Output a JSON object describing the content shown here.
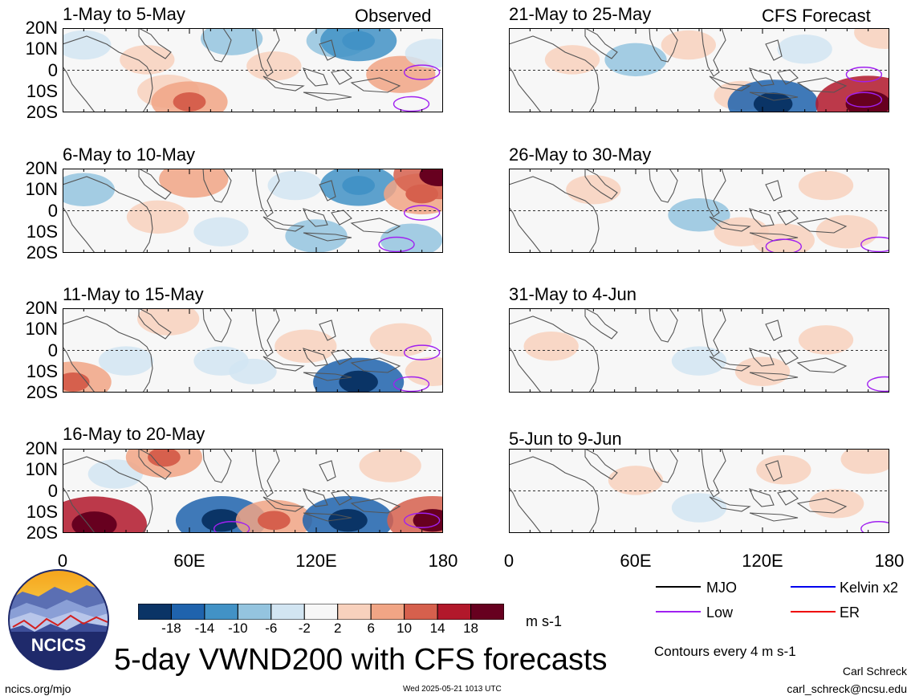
{
  "header": {
    "observed_label": "Observed",
    "forecast_label": "CFS Forecast"
  },
  "panels_left": [
    "1-May to 5-May",
    "6-May to 10-May",
    "11-May to 15-May",
    "16-May to 20-May"
  ],
  "panels_right": [
    "21-May to 25-May",
    "26-May to 30-May",
    "31-May to 4-Jun",
    "5-Jun to 9-Jun"
  ],
  "lat_ticks": [
    "20N",
    "10N",
    "0",
    "10S",
    "20S"
  ],
  "lon_ticks": [
    "0",
    "60E",
    "120E",
    "180"
  ],
  "colorbar": {
    "unit": "m s-1",
    "ticks": [
      "-18",
      "-14",
      "-10",
      "-6",
      "-2",
      "2",
      "6",
      "10",
      "14",
      "18"
    ],
    "colors": [
      "#0a3466",
      "#1f63ad",
      "#4292c6",
      "#94c4df",
      "#d2e5f2",
      "#f7f7f7",
      "#f8d1bd",
      "#f1a585",
      "#d6604d",
      "#b2182b",
      "#67001f"
    ]
  },
  "legend": {
    "items": [
      {
        "label": "MJO",
        "color": "#000000"
      },
      {
        "label": "Kelvin x2",
        "color": "#0000ee"
      },
      {
        "label": "Low",
        "color": "#a020f0"
      },
      {
        "label": "ER",
        "color": "#ee0000"
      }
    ],
    "note": "Contours every 4 m s-1"
  },
  "footer": {
    "logo_text": "NCICS",
    "title": "5-day VWND200 with CFS forecasts",
    "url": "ncics.org/mjo",
    "timestamp": "Wed 2025-05-21 1013 UTC",
    "author": "Carl Schreck",
    "email": "carl_schreck@ncsu.edu"
  },
  "chart_data": {
    "type": "heatmap",
    "variable": "VWND200",
    "lon_range": [
      0,
      180
    ],
    "lat_range": [
      -20,
      20
    ],
    "contour_interval": 4,
    "panels": [
      {
        "title": "1-May to 5-May",
        "kind": "observed",
        "anomalies": [
          {
            "lon": 10,
            "lat": 12,
            "value": -4
          },
          {
            "lon": 40,
            "lat": 5,
            "value": 4
          },
          {
            "lon": 50,
            "lat": -10,
            "value": 6
          },
          {
            "lon": 60,
            "lat": -15,
            "value": 10
          },
          {
            "lon": 80,
            "lat": 15,
            "value": -6
          },
          {
            "lon": 100,
            "lat": 2,
            "value": 4
          },
          {
            "lon": 130,
            "lat": 14,
            "value": -6
          },
          {
            "lon": 140,
            "lat": 14,
            "value": -10
          },
          {
            "lon": 160,
            "lat": -2,
            "value": 8
          },
          {
            "lon": 175,
            "lat": 8,
            "value": -4
          }
        ],
        "low_contours": [
          {
            "lon": 170,
            "lat": -1
          },
          {
            "lon": 165,
            "lat": -16
          }
        ]
      },
      {
        "title": "6-May to 10-May",
        "kind": "observed",
        "anomalies": [
          {
            "lon": 10,
            "lat": 10,
            "value": -6
          },
          {
            "lon": 45,
            "lat": -3,
            "value": 6
          },
          {
            "lon": 62,
            "lat": 15,
            "value": 8
          },
          {
            "lon": 75,
            "lat": -10,
            "value": -4
          },
          {
            "lon": 110,
            "lat": 12,
            "value": -4
          },
          {
            "lon": 120,
            "lat": -12,
            "value": -6
          },
          {
            "lon": 140,
            "lat": 12,
            "value": -10
          },
          {
            "lon": 170,
            "lat": 8,
            "value": 10
          },
          {
            "lon": 178,
            "lat": 17,
            "value": 14
          },
          {
            "lon": 165,
            "lat": -14,
            "value": -6
          }
        ],
        "low_contours": [
          {
            "lon": 170,
            "lat": -1
          },
          {
            "lon": 158,
            "lat": -16
          }
        ]
      },
      {
        "title": "11-May to 15-May",
        "kind": "observed",
        "anomalies": [
          {
            "lon": 5,
            "lat": -15,
            "value": 10
          },
          {
            "lon": 30,
            "lat": -5,
            "value": -4
          },
          {
            "lon": 50,
            "lat": 15,
            "value": 6
          },
          {
            "lon": 75,
            "lat": -5,
            "value": -4
          },
          {
            "lon": 90,
            "lat": -10,
            "value": -2
          },
          {
            "lon": 115,
            "lat": 2,
            "value": 6
          },
          {
            "lon": 140,
            "lat": -15,
            "value": -14
          },
          {
            "lon": 160,
            "lat": 5,
            "value": 6
          },
          {
            "lon": 175,
            "lat": -10,
            "value": 4
          }
        ],
        "low_contours": [
          {
            "lon": 170,
            "lat": -1
          },
          {
            "lon": 165,
            "lat": -16
          }
        ]
      },
      {
        "title": "16-May to 20-May",
        "kind": "observed",
        "anomalies": [
          {
            "lon": 15,
            "lat": -16,
            "value": 18
          },
          {
            "lon": 25,
            "lat": 8,
            "value": -4
          },
          {
            "lon": 48,
            "lat": 16,
            "value": 10
          },
          {
            "lon": 75,
            "lat": -14,
            "value": -14
          },
          {
            "lon": 100,
            "lat": -14,
            "value": 10
          },
          {
            "lon": 135,
            "lat": -14,
            "value": -14
          },
          {
            "lon": 155,
            "lat": 12,
            "value": 6
          },
          {
            "lon": 175,
            "lat": -14,
            "value": 14
          }
        ],
        "low_contours": [
          {
            "lon": 170,
            "lat": -14
          },
          {
            "lon": 80,
            "lat": -18
          }
        ]
      },
      {
        "title": "21-May to 25-May",
        "kind": "forecast",
        "anomalies": [
          {
            "lon": 30,
            "lat": 5,
            "value": 4
          },
          {
            "lon": 60,
            "lat": 5,
            "value": -6
          },
          {
            "lon": 85,
            "lat": 12,
            "value": 4
          },
          {
            "lon": 110,
            "lat": -12,
            "value": 4
          },
          {
            "lon": 125,
            "lat": -16,
            "value": -14
          },
          {
            "lon": 140,
            "lat": 10,
            "value": -4
          },
          {
            "lon": 170,
            "lat": -16,
            "value": 18
          },
          {
            "lon": 178,
            "lat": 18,
            "value": 6
          }
        ],
        "low_contours": [
          {
            "lon": 168,
            "lat": -14
          },
          {
            "lon": 168,
            "lat": -2
          }
        ]
      },
      {
        "title": "26-May to 30-May",
        "kind": "forecast",
        "anomalies": [
          {
            "lon": 40,
            "lat": 10,
            "value": 4
          },
          {
            "lon": 90,
            "lat": -2,
            "value": -6
          },
          {
            "lon": 110,
            "lat": -10,
            "value": 4
          },
          {
            "lon": 130,
            "lat": -14,
            "value": 6
          },
          {
            "lon": 160,
            "lat": -10,
            "value": 6
          },
          {
            "lon": 150,
            "lat": 12,
            "value": 4
          }
        ],
        "low_contours": [
          {
            "lon": 175,
            "lat": -16
          },
          {
            "lon": 130,
            "lat": -17
          }
        ]
      },
      {
        "title": "31-May to 4-Jun",
        "kind": "forecast",
        "anomalies": [
          {
            "lon": 20,
            "lat": 2,
            "value": 4
          },
          {
            "lon": 90,
            "lat": -5,
            "value": -4
          },
          {
            "lon": 120,
            "lat": -10,
            "value": 4
          },
          {
            "lon": 150,
            "lat": 5,
            "value": 4
          }
        ],
        "low_contours": [
          {
            "lon": 178,
            "lat": -16
          }
        ]
      },
      {
        "title": "5-Jun to 9-Jun",
        "kind": "forecast",
        "anomalies": [
          {
            "lon": 60,
            "lat": 5,
            "value": 4
          },
          {
            "lon": 90,
            "lat": -8,
            "value": -4
          },
          {
            "lon": 130,
            "lat": 10,
            "value": 4
          },
          {
            "lon": 155,
            "lat": -6,
            "value": 4
          },
          {
            "lon": 170,
            "lat": 15,
            "value": 4
          }
        ],
        "low_contours": [
          {
            "lon": 175,
            "lat": -18
          }
        ]
      }
    ]
  }
}
